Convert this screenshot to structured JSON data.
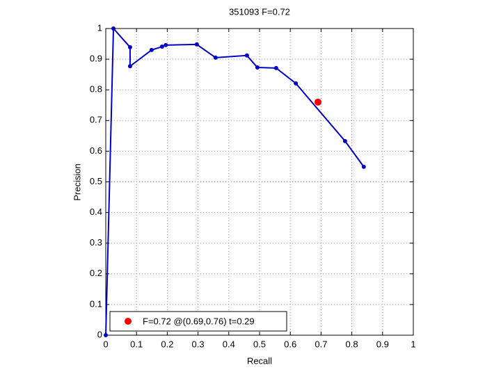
{
  "chart_data": {
    "type": "line",
    "title": "351093 F=0.72",
    "xlabel": "Recall",
    "ylabel": "Precision",
    "xlim": [
      0,
      1
    ],
    "ylim": [
      0,
      1
    ],
    "xticks": [
      0,
      0.1,
      0.2,
      0.3,
      0.4,
      0.5,
      0.6,
      0.7,
      0.8,
      0.9,
      1
    ],
    "yticks": [
      0,
      0.1,
      0.2,
      0.3,
      0.4,
      0.5,
      0.6,
      0.7,
      0.8,
      0.9,
      1
    ],
    "grid": true,
    "legend": "lower left",
    "series": [
      {
        "color": "#0000cc",
        "marker": true,
        "x": [
          0,
          0.025,
          0.079,
          0.079,
          0.149,
          0.183,
          0.195,
          0.296,
          0.357,
          0.459,
          0.493,
          0.554,
          0.618,
          0.778,
          0.839
        ],
        "values": [
          0,
          1,
          0.939,
          0.877,
          0.93,
          0.941,
          0.946,
          0.948,
          0.905,
          0.912,
          0.873,
          0.871,
          0.821,
          0.633,
          0.549
        ]
      },
      {
        "name": "F=0.72 @(0.69,0.76) t=0.29",
        "color": "#ff0000",
        "marker": true,
        "x": [
          0.69
        ],
        "values": [
          0.76
        ]
      }
    ]
  }
}
